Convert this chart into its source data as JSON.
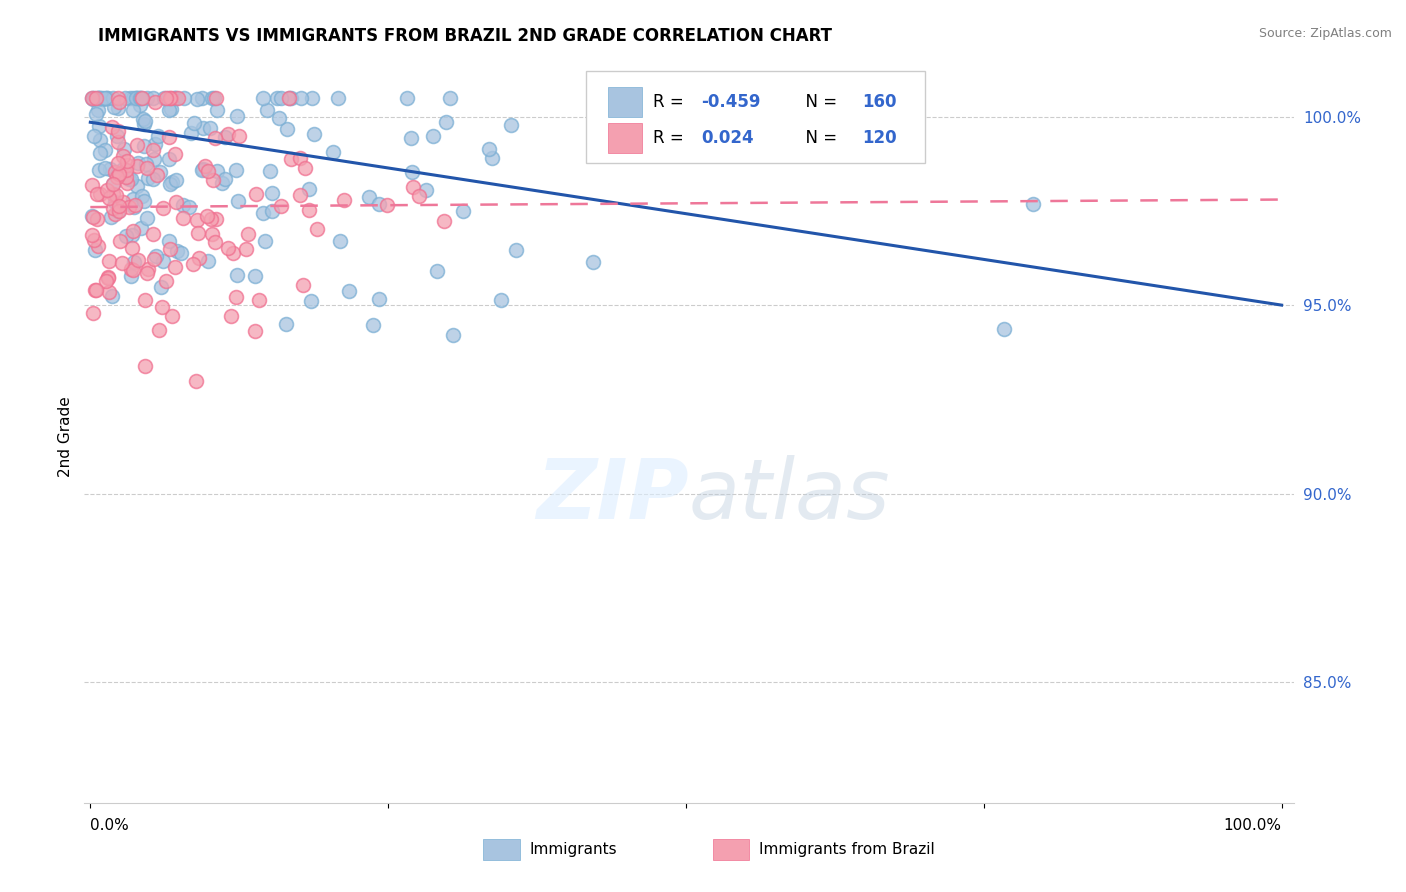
{
  "title": "IMMIGRANTS VS IMMIGRANTS FROM BRAZIL 2ND GRADE CORRELATION CHART",
  "source": "Source: ZipAtlas.com",
  "ylabel": "2nd Grade",
  "blue_color": "#A8C4E0",
  "pink_color": "#F4A0B0",
  "blue_edge_color": "#7BAFD4",
  "pink_edge_color": "#F07090",
  "blue_line_color": "#2255AA",
  "pink_line_color": "#EE7799",
  "y_min": 0.818,
  "y_max": 1.012,
  "y_ticks": [
    0.85,
    0.9,
    0.95,
    1.0
  ],
  "y_tick_labels": [
    "85.0%",
    "90.0%",
    "95.0%",
    "100.0%"
  ],
  "x_min": -0.005,
  "x_max": 1.01,
  "blue_trend_start_y": 0.9985,
  "blue_trend_end_y": 0.95,
  "pink_trend_start_y": 0.976,
  "pink_trend_end_y": 0.978,
  "N_blue": 160,
  "N_pink": 120,
  "seed_blue": 77,
  "seed_pink": 55
}
